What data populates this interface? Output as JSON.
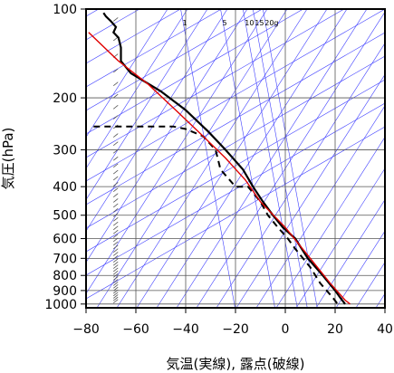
{
  "chart_data": {
    "type": "line",
    "title": "",
    "xlabel": "気温(実線), 露点(破線)",
    "ylabel": "気圧(hPa)",
    "xlim": [
      -80,
      40
    ],
    "ylim": [
      1030,
      100
    ],
    "y_scale": "log",
    "x_ticks": [
      -80,
      -60,
      -40,
      -20,
      0,
      20,
      40
    ],
    "x_tick_labels": [
      "−80",
      "−60",
      "−40",
      "−20",
      "0",
      "20",
      "40"
    ],
    "y_ticks": [
      100,
      200,
      300,
      400,
      500,
      600,
      700,
      800,
      900,
      1000
    ],
    "y_tick_labels": [
      "100",
      "200",
      "300",
      "400",
      "500",
      "600",
      "700",
      "800",
      "900",
      "1000"
    ],
    "mixing_ratio_labels": [
      "1",
      "5",
      "10",
      "15",
      "20g"
    ],
    "mixing_ratio_label_temps": [
      -42,
      -26,
      -17,
      -13,
      -9
    ],
    "grid": true,
    "colors": {
      "temperature": "#000000",
      "dewpoint": "#000000",
      "parcel": "#e00000",
      "guides": "#3f3fff",
      "grid": "#555555",
      "wind_barbs": "#555555"
    },
    "series": [
      {
        "name": "気温",
        "style": "solid",
        "x": [
          -73,
          -72,
          -70,
          -68,
          -69,
          -67,
          -66,
          -66,
          -62,
          -50,
          -40,
          -31,
          -24,
          -17,
          -13,
          -9,
          -5,
          -1,
          4,
          9,
          15,
          20,
          22,
          24
        ],
        "y": [
          103,
          106,
          110,
          115,
          120,
          125,
          135,
          150,
          165,
          190,
          220,
          260,
          300,
          350,
          400,
          450,
          500,
          550,
          600,
          700,
          800,
          900,
          950,
          1000
        ]
      },
      {
        "name": "露点",
        "style": "dashed",
        "x": [
          -77,
          -45,
          -40,
          -33,
          -28,
          -26,
          -20,
          -15,
          -10,
          -7,
          -3,
          1,
          4,
          10,
          14,
          19,
          21
        ],
        "y": [
          250,
          250,
          255,
          270,
          300,
          350,
          400,
          400,
          450,
          500,
          550,
          600,
          650,
          750,
          850,
          950,
          1000
        ]
      },
      {
        "name": "",
        "style": "parcel",
        "x": [
          -79,
          -67,
          -55,
          -44,
          -33,
          -24,
          -16,
          -10,
          0,
          10,
          18,
          24,
          26
        ],
        "y": [
          120,
          150,
          180,
          220,
          270,
          320,
          380,
          450,
          550,
          700,
          850,
          970,
          1000
        ]
      }
    ]
  }
}
